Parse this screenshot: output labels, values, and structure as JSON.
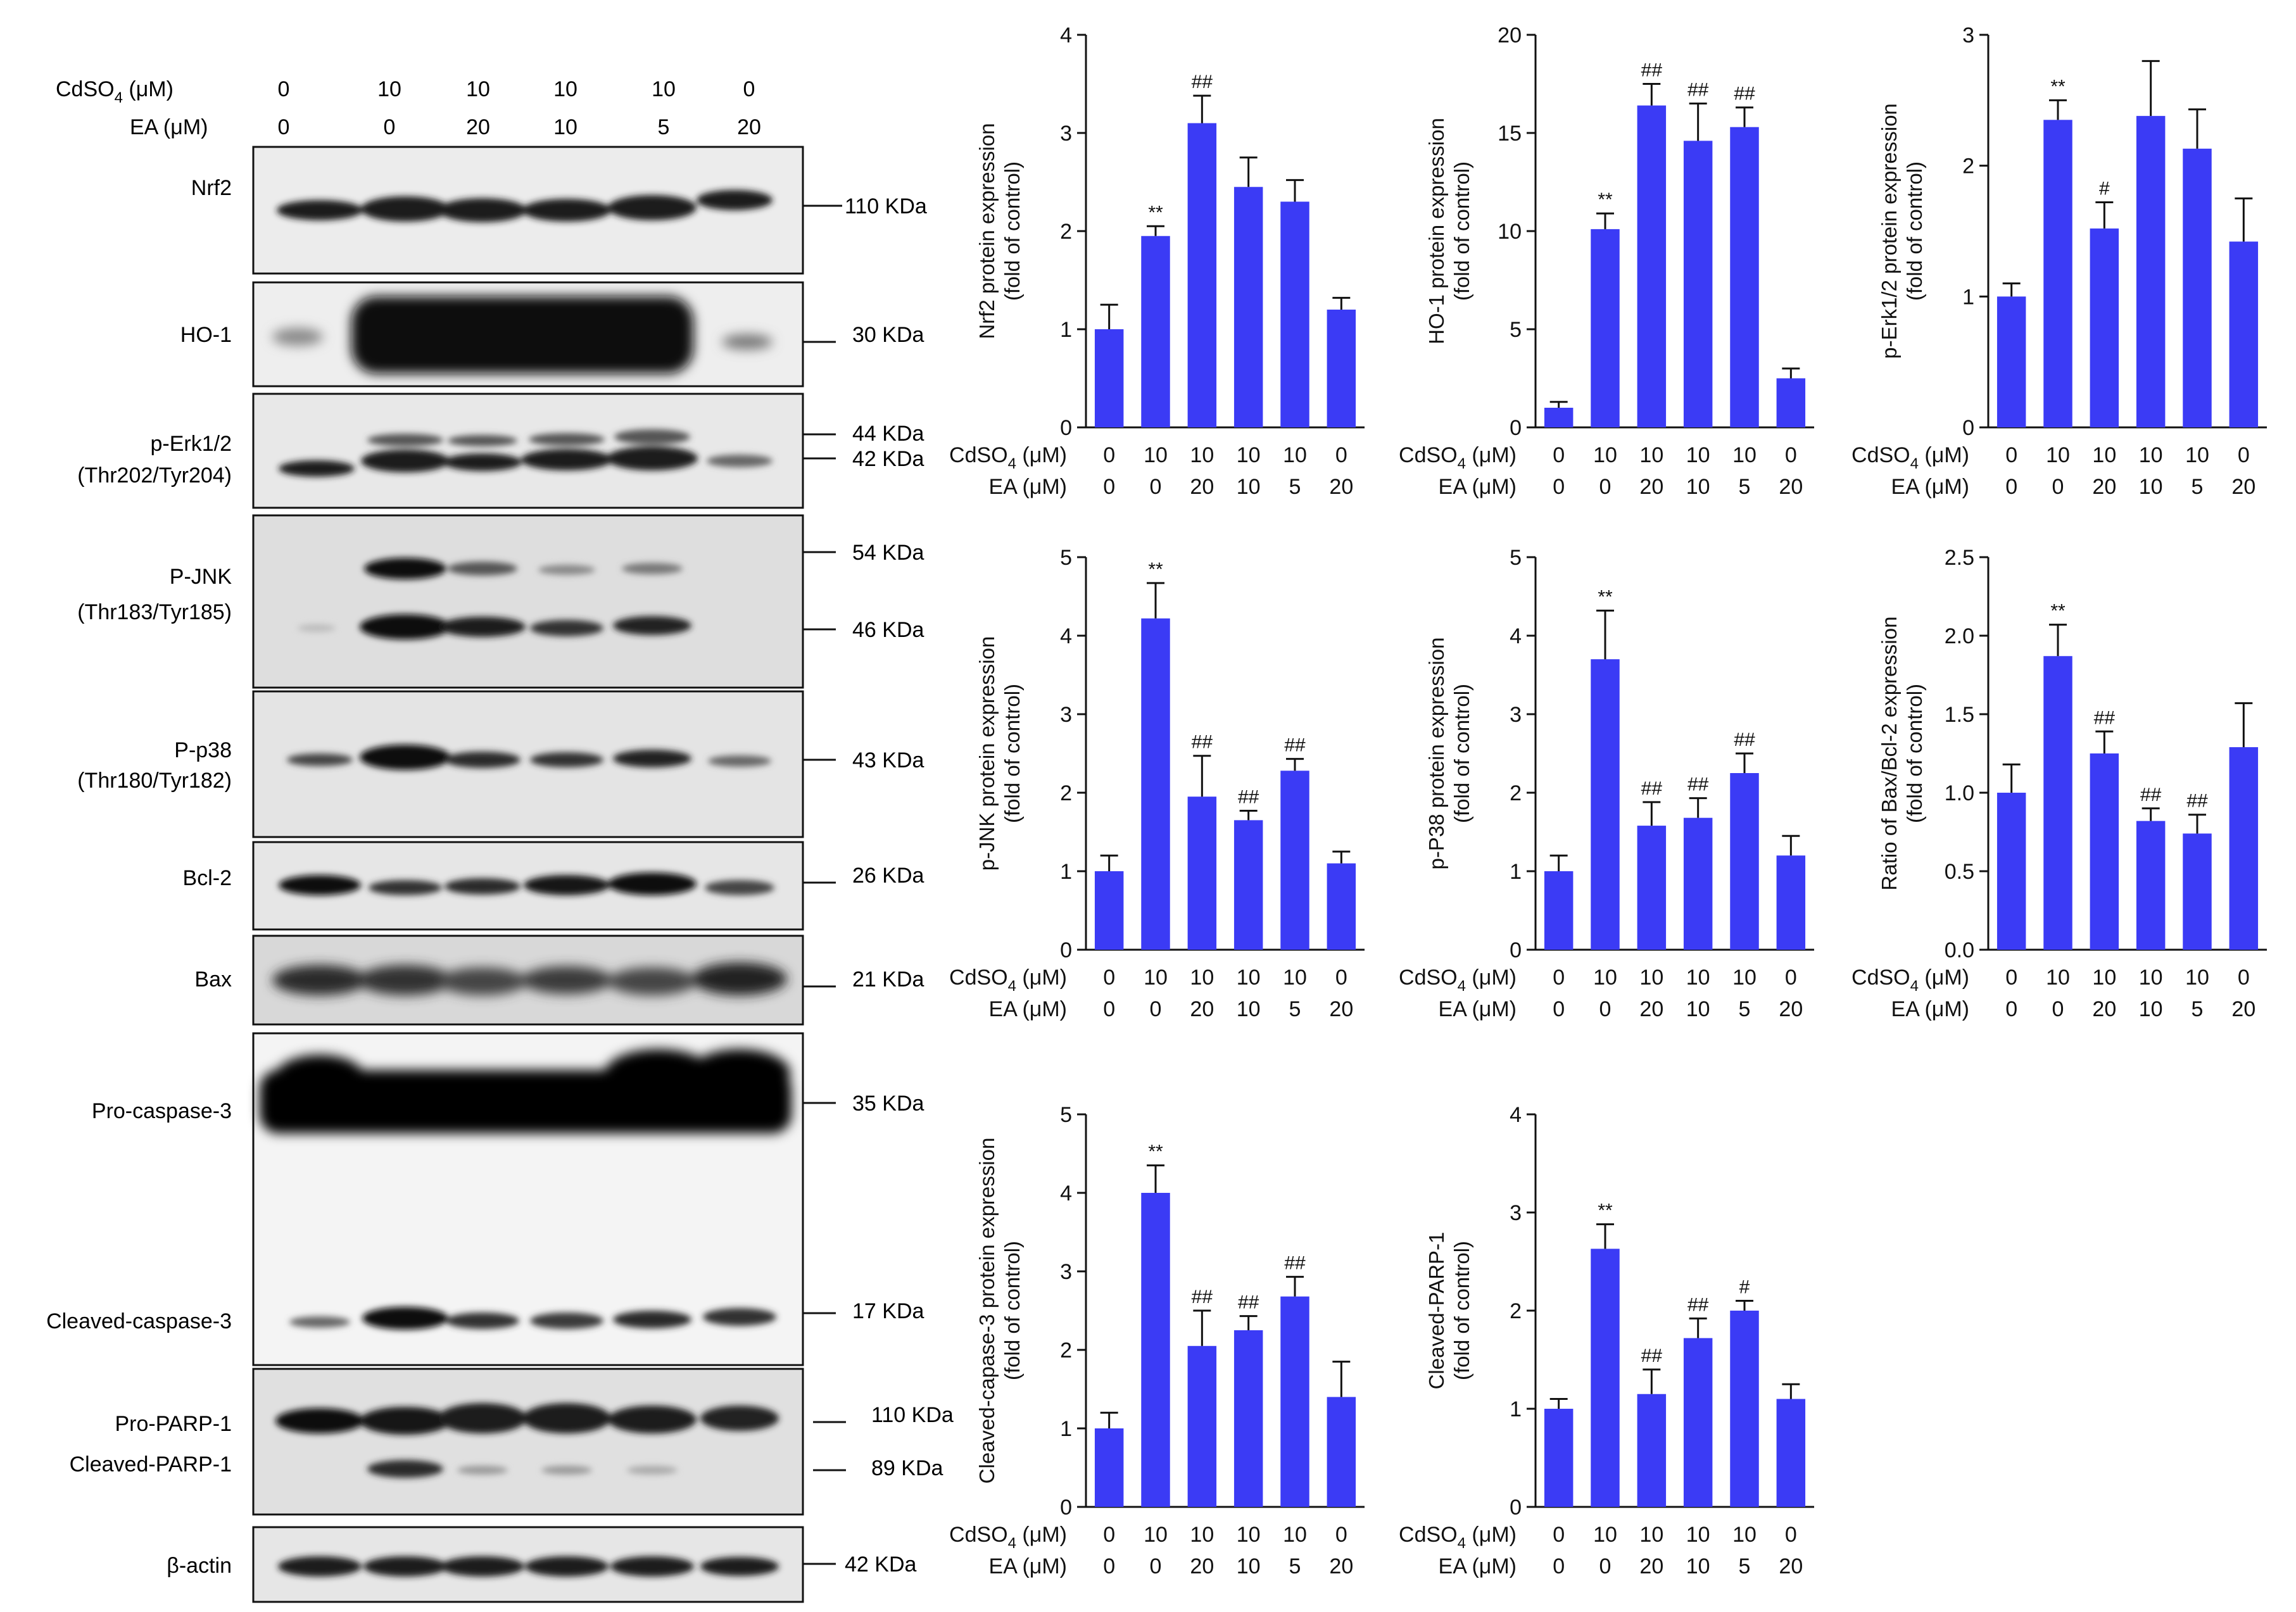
{
  "treatment_header": {
    "cdso4_label": "CdSO",
    "cdso4_sub": "4",
    "cdso4_unit": " (μM)",
    "ea_label": "EA (μM)",
    "cdso4_values": [
      "0",
      "10",
      "10",
      "10",
      "10",
      "0"
    ],
    "ea_values": [
      "0",
      "0",
      "20",
      "10",
      "5",
      "20"
    ]
  },
  "blots": [
    {
      "name": "Nrf2",
      "labels": [
        "Nrf2"
      ],
      "kda": [
        "110 KDa"
      ]
    },
    {
      "name": "HO-1",
      "labels": [
        "HO-1"
      ],
      "kda": [
        "30 KDa"
      ]
    },
    {
      "name": "p-Erk1/2",
      "labels": [
        "p-Erk1/2",
        "(Thr202/Tyr204)"
      ],
      "kda": [
        "44 KDa",
        "42 KDa"
      ]
    },
    {
      "name": "P-JNK",
      "labels": [
        "P-JNK",
        "(Thr183/Tyr185)"
      ],
      "kda": [
        "54 KDa",
        "46 KDa"
      ]
    },
    {
      "name": "P-p38",
      "labels": [
        "P-p38",
        "(Thr180/Tyr182)"
      ],
      "kda": [
        "43 KDa"
      ]
    },
    {
      "name": "Bcl-2",
      "labels": [
        "Bcl-2"
      ],
      "kda": [
        "26 KDa"
      ]
    },
    {
      "name": "Bax",
      "labels": [
        "Bax"
      ],
      "kda": [
        "21 KDa"
      ]
    },
    {
      "name": "Caspase-3",
      "labels": [
        "Pro-caspase-3",
        "Cleaved-caspase-3"
      ],
      "kda": [
        "35 KDa",
        "17 KDa"
      ]
    },
    {
      "name": "PARP-1",
      "labels": [
        "Pro-PARP-1",
        "Cleaved-PARP-1"
      ],
      "kda": [
        "110 KDa",
        "89 KDa"
      ]
    },
    {
      "name": "beta-actin",
      "labels": [
        "β-actin"
      ],
      "kda": [
        "42 KDa"
      ]
    }
  ],
  "chart_data": [
    {
      "type": "bar",
      "ylabel": [
        "Nrf2 protein expression",
        "(fold of control)"
      ],
      "ylim": [
        0,
        4
      ],
      "ticks": [
        "0",
        "1",
        "2",
        "3",
        "4"
      ],
      "values": [
        1.0,
        1.95,
        3.1,
        2.45,
        2.3,
        1.2
      ],
      "errors": [
        0.25,
        0.1,
        0.28,
        0.3,
        0.22,
        0.12
      ],
      "annotations": [
        "",
        "**",
        "##",
        "",
        "",
        ""
      ],
      "bar_color": "#3b3bf5"
    },
    {
      "type": "bar",
      "ylabel": [
        "HO-1 protein expression",
        "(fold of control)"
      ],
      "ylim": [
        0,
        20
      ],
      "ticks": [
        "0",
        "5",
        "10",
        "15",
        "20"
      ],
      "values": [
        1.0,
        10.1,
        16.4,
        14.6,
        15.3,
        2.5
      ],
      "errors": [
        0.3,
        0.8,
        1.1,
        1.9,
        1.0,
        0.5
      ],
      "annotations": [
        "",
        "**",
        "##",
        "##",
        "##",
        ""
      ],
      "bar_color": "#3b3bf5"
    },
    {
      "type": "bar",
      "ylabel": [
        "p-Erk1/2 protein expression",
        "(fold of control)"
      ],
      "ylim": [
        0,
        3
      ],
      "ticks": [
        "0",
        "1",
        "2",
        "3"
      ],
      "values": [
        1.0,
        2.35,
        1.52,
        2.38,
        2.13,
        1.42
      ],
      "errors": [
        0.1,
        0.15,
        0.2,
        0.42,
        0.3,
        0.33
      ],
      "annotations": [
        "",
        "**",
        "#",
        "",
        "",
        ""
      ],
      "bar_color": "#3b3bf5"
    },
    {
      "type": "bar",
      "ylabel": [
        "p-JNK protein expression",
        "(fold of control)"
      ],
      "ylim": [
        0,
        5
      ],
      "ticks": [
        "0",
        "1",
        "2",
        "3",
        "4",
        "5"
      ],
      "values": [
        1.0,
        4.22,
        1.95,
        1.65,
        2.28,
        1.1
      ],
      "errors": [
        0.2,
        0.45,
        0.52,
        0.12,
        0.15,
        0.15
      ],
      "annotations": [
        "",
        "**",
        "##",
        "##",
        "##",
        ""
      ],
      "bar_color": "#3b3bf5"
    },
    {
      "type": "bar",
      "ylabel": [
        "p-P38 protein expression",
        "(fold of control)"
      ],
      "ylim": [
        0,
        5
      ],
      "ticks": [
        "0",
        "1",
        "2",
        "3",
        "4",
        "5"
      ],
      "values": [
        1.0,
        3.7,
        1.58,
        1.68,
        2.25,
        1.2
      ],
      "errors": [
        0.2,
        0.62,
        0.3,
        0.25,
        0.25,
        0.25
      ],
      "annotations": [
        "",
        "**",
        "##",
        "##",
        "##",
        ""
      ],
      "bar_color": "#3b3bf5"
    },
    {
      "type": "bar",
      "ylabel": [
        "Ratio of Bax/Bcl-2 expression",
        "(fold of control)"
      ],
      "ylim": [
        0,
        2.5
      ],
      "ticks": [
        "0.0",
        "0.5",
        "1.0",
        "1.5",
        "2.0",
        "2.5"
      ],
      "values": [
        1.0,
        1.87,
        1.25,
        0.82,
        0.74,
        1.29
      ],
      "errors": [
        0.18,
        0.2,
        0.14,
        0.08,
        0.12,
        0.28
      ],
      "annotations": [
        "",
        "**",
        "##",
        "##",
        "##",
        ""
      ],
      "bar_color": "#3b3bf5"
    },
    {
      "type": "bar",
      "ylabel": [
        "Cleaved-capase-3 protein expression",
        "(fold of control)"
      ],
      "ylim": [
        0,
        5
      ],
      "ticks": [
        "0",
        "1",
        "2",
        "3",
        "4",
        "5"
      ],
      "values": [
        1.0,
        4.0,
        2.05,
        2.25,
        2.68,
        1.4
      ],
      "errors": [
        0.2,
        0.35,
        0.45,
        0.18,
        0.25,
        0.45
      ],
      "annotations": [
        "",
        "**",
        "##",
        "##",
        "##",
        ""
      ],
      "bar_color": "#3b3bf5"
    },
    {
      "type": "bar",
      "ylabel": [
        "Cleaved-PARP-1",
        "(fold of control)"
      ],
      "ylim": [
        0,
        4
      ],
      "ticks": [
        "0",
        "1",
        "2",
        "3",
        "4"
      ],
      "values": [
        1.0,
        2.63,
        1.15,
        1.72,
        2.0,
        1.1
      ],
      "errors": [
        0.1,
        0.25,
        0.25,
        0.2,
        0.1,
        0.15
      ],
      "annotations": [
        "",
        "**",
        "##",
        "##",
        "#",
        ""
      ],
      "bar_color": "#3b3bf5"
    }
  ]
}
